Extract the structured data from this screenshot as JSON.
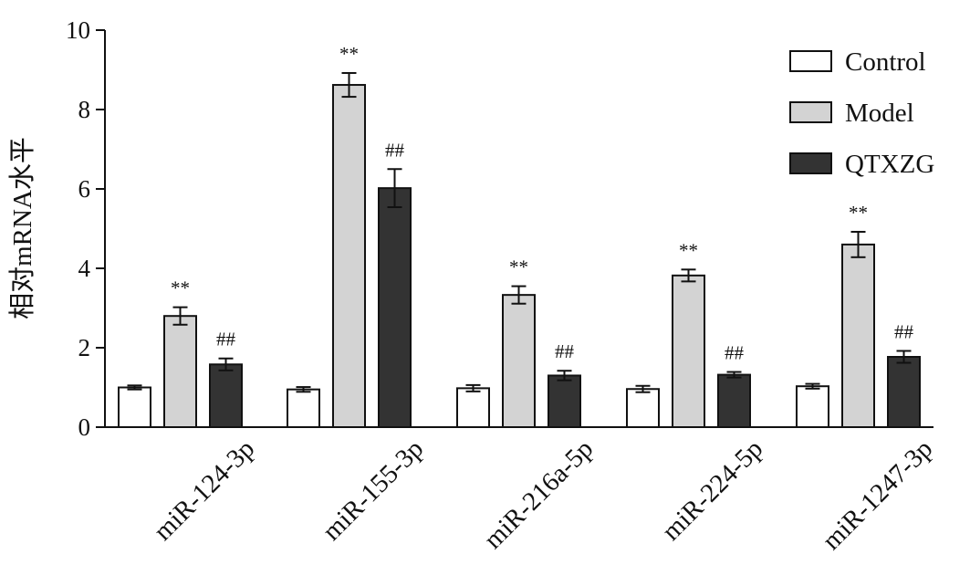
{
  "chart_data": {
    "type": "bar",
    "title": "",
    "xlabel": "",
    "ylabel": "相对mRNA水平",
    "ylim": [
      0,
      10
    ],
    "yticks": [
      0,
      2,
      4,
      6,
      8,
      10
    ],
    "grid": false,
    "legend_position": "top-right",
    "categories": [
      "miR-124-3p",
      "miR-155-3p",
      "miR-216a-5p",
      "miR-224-5p",
      "miR-1247-3p"
    ],
    "series": [
      {
        "name": "Control",
        "color": "#ffffff",
        "values": [
          1.0,
          0.95,
          0.98,
          0.96,
          1.03
        ],
        "errors": [
          0.05,
          0.06,
          0.08,
          0.08,
          0.06
        ],
        "annotations": [
          "",
          "",
          "",
          "",
          ""
        ]
      },
      {
        "name": "Model",
        "color": "#d3d3d3",
        "values": [
          2.8,
          8.62,
          3.33,
          3.82,
          4.6
        ],
        "errors": [
          0.22,
          0.3,
          0.22,
          0.15,
          0.32
        ],
        "annotations": [
          "**",
          "**",
          "**",
          "**",
          "**"
        ]
      },
      {
        "name": "QTXZG",
        "color": "#333333",
        "values": [
          1.58,
          6.02,
          1.3,
          1.32,
          1.77
        ],
        "errors": [
          0.15,
          0.48,
          0.12,
          0.07,
          0.15
        ],
        "annotations": [
          "##",
          "##",
          "##",
          "##",
          "##"
        ]
      }
    ]
  }
}
